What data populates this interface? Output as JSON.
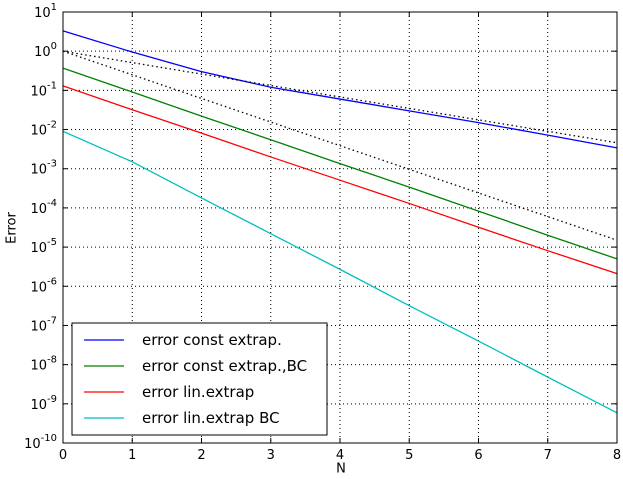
{
  "chart_data": {
    "type": "line",
    "xlabel": "N",
    "ylabel": "Error",
    "x": [
      0,
      1,
      2,
      3,
      4,
      5,
      6,
      7,
      8
    ],
    "xlim": [
      0,
      8
    ],
    "xticks": [
      0,
      1,
      2,
      3,
      4,
      5,
      6,
      7,
      8
    ],
    "ylim": [
      1e-10,
      10
    ],
    "log_y": true,
    "grid": true,
    "legend": "lower left",
    "yticks": [
      {
        "value": 1e-10,
        "label": "10^-10"
      },
      {
        "value": 1e-09,
        "label": "10^-9"
      },
      {
        "value": 1e-08,
        "label": "10^-8"
      },
      {
        "value": 1e-07,
        "label": "10^-7"
      },
      {
        "value": 1e-06,
        "label": "10^-6"
      },
      {
        "value": 1e-05,
        "label": "10^-5"
      },
      {
        "value": 0.0001,
        "label": "10^-4"
      },
      {
        "value": 0.001,
        "label": "10^-3"
      },
      {
        "value": 0.01,
        "label": "10^-2"
      },
      {
        "value": 0.1,
        "label": "10^-1"
      },
      {
        "value": 1,
        "label": "10^0"
      },
      {
        "value": 10,
        "label": "10^1"
      }
    ],
    "series": [
      {
        "name": "error const extrap.",
        "color": "#0000ff",
        "values": [
          3.3,
          0.95,
          0.3,
          0.12,
          0.06,
          0.03,
          0.015,
          0.0072,
          0.0034
        ]
      },
      {
        "name": "error const extrap.,BC",
        "color": "#008000",
        "values": [
          0.37,
          0.091,
          0.022,
          0.0055,
          0.00135,
          0.00034,
          8.3e-05,
          2e-05,
          5e-06
        ]
      },
      {
        "name": "error lin.extrap",
        "color": "#ff0000",
        "values": [
          0.13,
          0.032,
          0.0081,
          0.002,
          0.00051,
          0.00013,
          3.2e-05,
          8.1e-06,
          2.1e-06
        ]
      },
      {
        "name": "error lin.extrap BC",
        "color": "#00bfbf",
        "values": [
          0.009,
          0.0015,
          0.00018,
          2.2e-05,
          2.7e-06,
          3.2e-07,
          4e-08,
          4.8e-09,
          5.9e-10
        ]
      },
      {
        "color": "#000000",
        "dash": "dotted",
        "x": [
          0,
          8
        ],
        "values": [
          1,
          0.0046
        ]
      },
      {
        "color": "#000000",
        "dash": "dotted",
        "x": [
          0,
          8
        ],
        "values": [
          1,
          1.5e-05
        ]
      }
    ]
  }
}
